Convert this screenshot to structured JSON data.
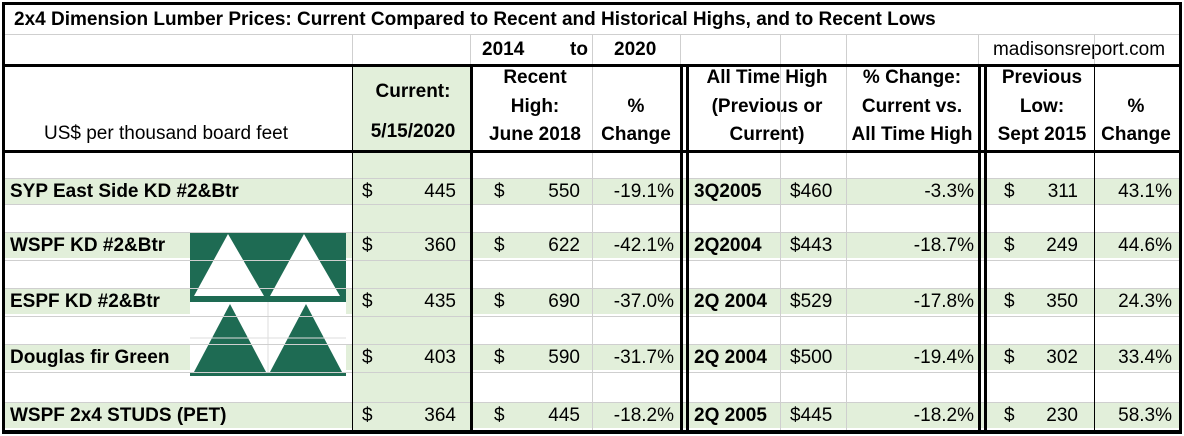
{
  "title": "2x4 Dimension Lumber Prices: Current Compared to Recent and Historical Highs, and to Recent Lows",
  "range": {
    "from": "2014",
    "to_word": "to",
    "to": "2020"
  },
  "source": "madisonsreport.com",
  "headers": {
    "unit": "US$ per thousand board feet",
    "current": [
      "Current:",
      "5/15/2020"
    ],
    "recent_high": [
      "Recent",
      "High:",
      "June 2018"
    ],
    "pct_change": [
      "%",
      "Change"
    ],
    "all_time_high": [
      "All Time High",
      "(Previous or",
      "Current)"
    ],
    "pct_vs_ath": [
      "% Change:",
      "Current vs.",
      "All Time High"
    ],
    "previous_low": [
      "Previous",
      "Low:",
      "Sept 2015"
    ],
    "pct_change2": [
      "%",
      "Change"
    ]
  },
  "currency": "$",
  "colors": {
    "row_highlight": "#e2efda",
    "logo_green": "#1e6b53",
    "grid": "#cfcfcf"
  },
  "chart_data": {
    "type": "table",
    "title": "2x4 Dimension Lumber Prices: Current Compared to Recent and Historical Highs, and to Recent Lows",
    "columns": [
      "US$ per thousand board feet",
      "Current: 5/15/2020",
      "Recent High: June 2018",
      "% Change",
      "All Time High (Previous or Current)",
      "",
      "% Change: Current vs. All Time High",
      "Previous Low: Sept 2015",
      "% Change"
    ],
    "rows": [
      {
        "name": "SYP East Side KD #2&Btr",
        "current": "445",
        "recent_high": "550",
        "pct_recent": "-19.1%",
        "ath_date": "3Q2005",
        "ath_price": "$460",
        "pct_ath": "-3.3%",
        "prev_low": "311",
        "pct_low": "43.1%"
      },
      {
        "name": "WSPF KD #2&Btr",
        "current": "360",
        "recent_high": "622",
        "pct_recent": "-42.1%",
        "ath_date": "2Q2004",
        "ath_price": "$443",
        "pct_ath": "-18.7%",
        "prev_low": "249",
        "pct_low": "44.6%"
      },
      {
        "name": "ESPF KD #2&Btr",
        "current": "435",
        "recent_high": "690",
        "pct_recent": "-37.0%",
        "ath_date": "2Q 2004",
        "ath_price": "$529",
        "pct_ath": "-17.8%",
        "prev_low": "350",
        "pct_low": "24.3%"
      },
      {
        "name": "Douglas fir Green",
        "current": "403",
        "recent_high": "590",
        "pct_recent": "-31.7%",
        "ath_date": "2Q 2004",
        "ath_price": "$500",
        "pct_ath": "-19.4%",
        "prev_low": "302",
        "pct_low": "33.4%"
      },
      {
        "name": "WSPF 2x4 STUDS (PET)",
        "current": "364",
        "recent_high": "445",
        "pct_recent": "-18.2%",
        "ath_date": "2Q 2005",
        "ath_price": "$445",
        "pct_ath": "-18.2%",
        "prev_low": "230",
        "pct_low": "58.3%"
      }
    ]
  }
}
